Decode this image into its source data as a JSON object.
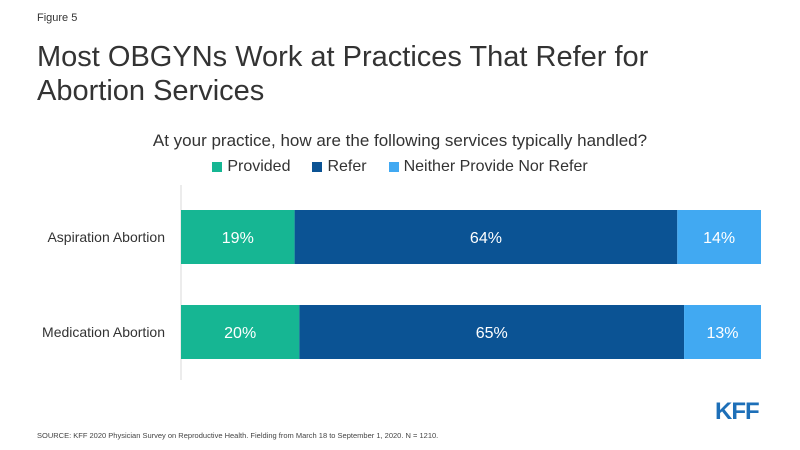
{
  "figure_label": "Figure 5",
  "title": "Most OBGYNs Work at Practices That Refer for Abortion Services",
  "source": "SOURCE: KFF 2020 Physician Survey on Reproductive Health. Fielding from March 18 to September 1, 2020. N = 1210.",
  "logo_text": "KFF",
  "colors": {
    "provided": "#16b693",
    "refer": "#0b5394",
    "neither": "#41a9f2"
  },
  "chart_data": {
    "type": "bar",
    "orientation": "horizontal",
    "stacked": true,
    "title": "At your practice, how are the following services typically handled?",
    "categories": [
      "Aspiration Abortion",
      "Medication Abortion"
    ],
    "series": [
      {
        "name": "Provided",
        "values": [
          19,
          20
        ],
        "labels": [
          "19%",
          "20%"
        ],
        "color": "#16b693"
      },
      {
        "name": "Refer",
        "values": [
          64,
          65
        ],
        "labels": [
          "64%",
          "65%"
        ],
        "color": "#0b5394"
      },
      {
        "name": "Neither Provide Nor Refer",
        "values": [
          14,
          13
        ],
        "labels": [
          "14%",
          "13%"
        ],
        "color": "#41a9f2"
      }
    ],
    "xlim": [
      0,
      100
    ],
    "legend_position": "top",
    "grid": false
  }
}
